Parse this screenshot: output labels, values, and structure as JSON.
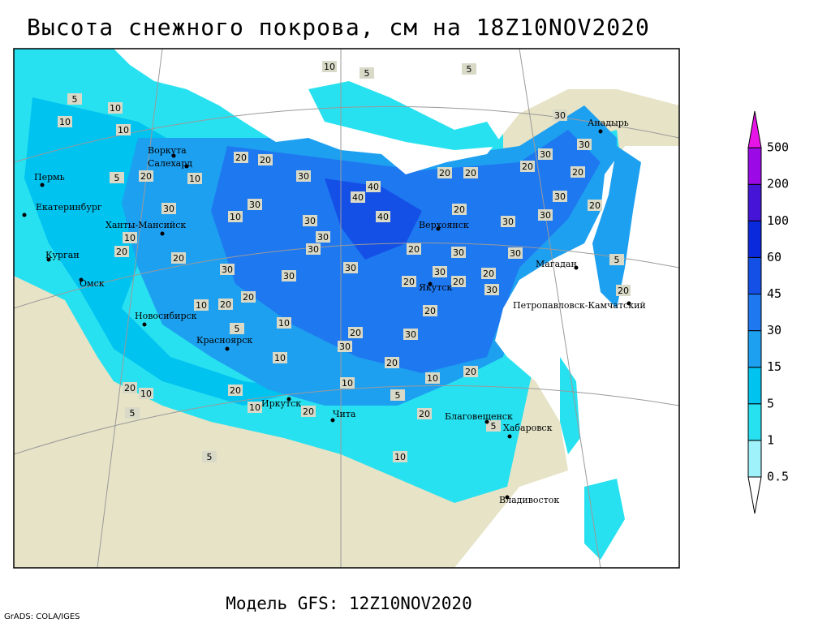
{
  "title": "Высота снежного покрова, см на 18Z10NOV2020",
  "model_label": "Модель GFS: 12Z10NOV2020",
  "credit": "GrADS: COLA/IGES",
  "legend": {
    "levels": [
      0.5,
      1,
      5,
      15,
      30,
      45,
      60,
      100,
      200,
      500
    ],
    "colors": [
      "#ffffff",
      "#a0f2fa",
      "#28e1f0",
      "#00c3f0",
      "#1ea0f0",
      "#1e78f0",
      "#1450e6",
      "#0a28dc",
      "#4614d7",
      "#9b0ae6",
      "#e614e6"
    ]
  },
  "cities": [
    "Воркута",
    "Салехард",
    "Пермь",
    "Екатеринбург",
    "Ханты-Мансийск",
    "Курган",
    "Омск",
    "Новосибирск",
    "Красноярск",
    "Иркутск",
    "Чита",
    "Верхоянск",
    "Якутск",
    "Анадырь",
    "Магадан",
    "Петропавловск-Камчатский",
    "Благовещенск",
    "Хабаровск",
    "Владивосток"
  ],
  "contour_labels": [
    10,
    5,
    5,
    5,
    10,
    10,
    10,
    30,
    30,
    30,
    20,
    20,
    20,
    20,
    20,
    20,
    30,
    20,
    5,
    10,
    40,
    40,
    30,
    20,
    40,
    30,
    20,
    30,
    30,
    30,
    10,
    30,
    30,
    10,
    20,
    20,
    30,
    20,
    30,
    30,
    5,
    30,
    30,
    30,
    30,
    20,
    20,
    20,
    30,
    20,
    20,
    10,
    20,
    20,
    10,
    5,
    30,
    20,
    30,
    10,
    20,
    20,
    10,
    10,
    20,
    5,
    20,
    10,
    20,
    20,
    10,
    5,
    5,
    10,
    5
  ]
}
